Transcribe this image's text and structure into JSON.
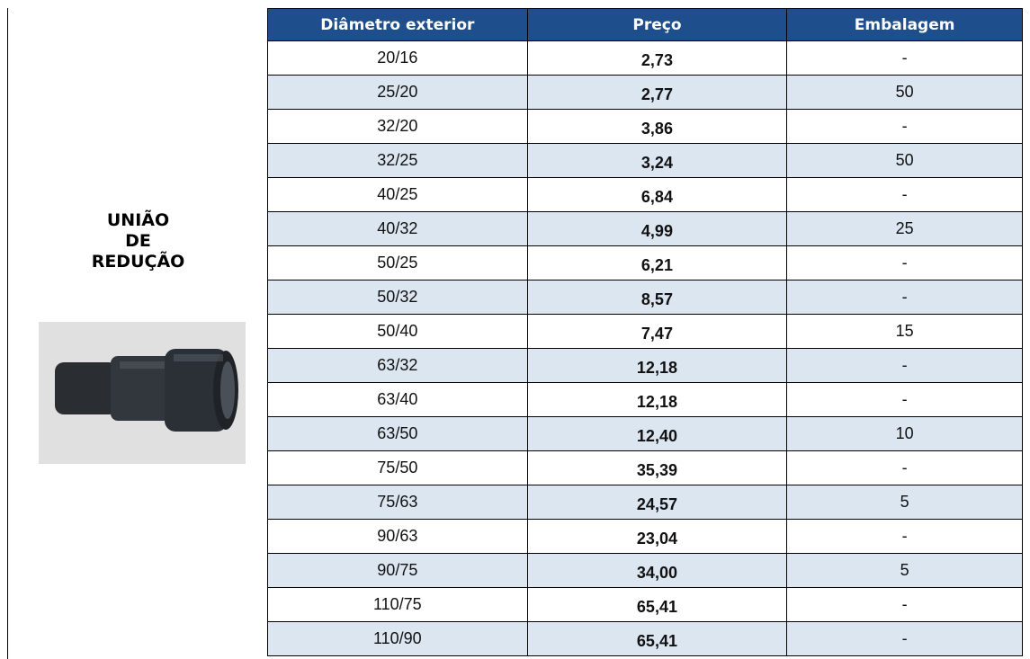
{
  "product": {
    "label": [
      "UNIÃO",
      "DE",
      "REDUÇÃO"
    ]
  },
  "table": {
    "headers": [
      "Diâmetro exterior",
      "Preço",
      "Embalagem"
    ],
    "rows": [
      [
        "20/16",
        "2,73",
        "-"
      ],
      [
        "25/20",
        "2,77",
        "50"
      ],
      [
        "32/20",
        "3,86",
        "-"
      ],
      [
        "32/25",
        "3,24",
        "50"
      ],
      [
        "40/25",
        "6,84",
        "-"
      ],
      [
        "40/32",
        "4,99",
        "25"
      ],
      [
        "50/25",
        "6,21",
        "-"
      ],
      [
        "50/32",
        "8,57",
        "-"
      ],
      [
        "50/40",
        "7,47",
        "15"
      ],
      [
        "63/32",
        "12,18",
        "-"
      ],
      [
        "63/40",
        "12,18",
        "-"
      ],
      [
        "63/50",
        "12,40",
        "10"
      ],
      [
        "75/50",
        "35,39",
        "-"
      ],
      [
        "75/63",
        "24,57",
        "5"
      ],
      [
        "90/63",
        "23,04",
        "-"
      ],
      [
        "90/75",
        "34,00",
        "5"
      ],
      [
        "110/75",
        "65,41",
        "-"
      ],
      [
        "110/90",
        "65,41",
        "-"
      ]
    ]
  }
}
